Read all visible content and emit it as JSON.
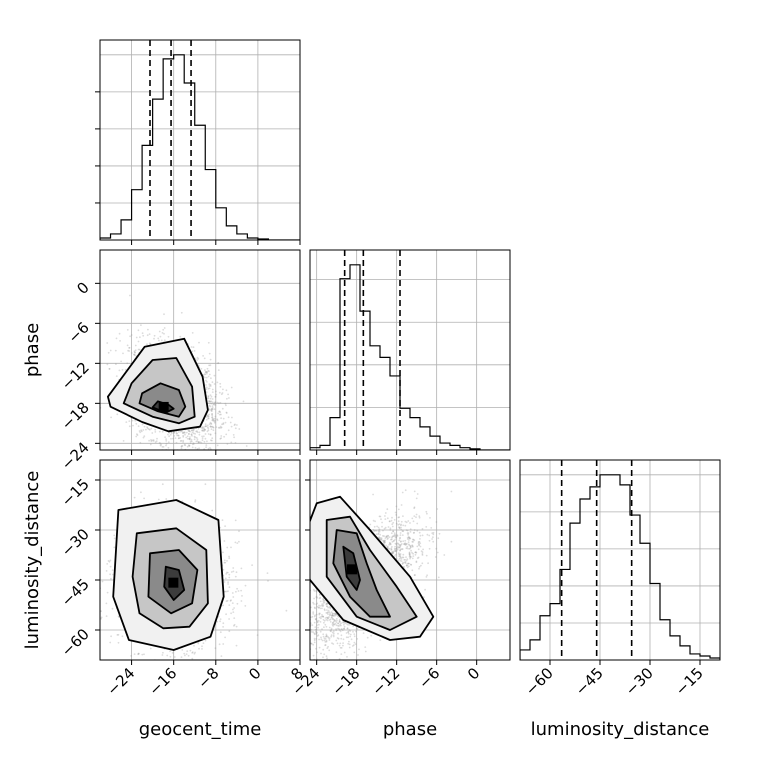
{
  "chart_data": {
    "type": "corner",
    "parameters": [
      "geocent_time",
      "phase",
      "luminosity_distance"
    ],
    "axis_labels": {
      "x": [
        "geocent_time",
        "phase",
        "luminosity_distance"
      ],
      "y": [
        "phase",
        "luminosity_distance"
      ]
    },
    "ranges": {
      "geocent_time": [
        -30,
        8
      ],
      "phase": [
        -25,
        5
      ],
      "luminosity_distance": [
        -69,
        -9
      ]
    },
    "ticks": {
      "geocent_time": {
        "values": [
          -24,
          -16,
          -8,
          0,
          8
        ],
        "labels": [
          "−24",
          "−16",
          "−8",
          "0",
          "8"
        ]
      },
      "phase": {
        "values": [
          -24,
          -18,
          -12,
          -6,
          0
        ],
        "labels": [
          "−24",
          "−18",
          "−12",
          "−6",
          "0"
        ]
      },
      "luminosity_distance": {
        "values": [
          -60,
          -45,
          -30,
          -15
        ],
        "labels": [
          "−60",
          "−45",
          "−30",
          "−15"
        ]
      }
    },
    "quantiles": {
      "geocent_time": [
        -20.5,
        -16.5,
        -12.7
      ],
      "phase": [
        -19.8,
        -17.0,
        -11.5
      ],
      "luminosity_distance": [
        -56.5,
        -46.0,
        -35.5
      ]
    },
    "histograms": {
      "geocent_time": {
        "bin_edges": [
          -30,
          -28,
          -26,
          -24,
          -22,
          -20,
          -18,
          -16,
          -14,
          -12,
          -10,
          -8,
          -6,
          -4,
          -2,
          0,
          2,
          4,
          6,
          8
        ],
        "counts": [
          1,
          3,
          10,
          25,
          47,
          70,
          90,
          92,
          78,
          57,
          35,
          16,
          7,
          3,
          1,
          0.5,
          0,
          0,
          0
        ]
      },
      "phase": {
        "bin_edges": [
          -25,
          -23.5,
          -22,
          -20.5,
          -19,
          -17.5,
          -16,
          -14.5,
          -13,
          -11.5,
          -10,
          -8.5,
          -7,
          -5.5,
          -4,
          -2.5,
          -1,
          0.5,
          2,
          3.5,
          5
        ],
        "counts": [
          1,
          2,
          14,
          74,
          80,
          60,
          45,
          40,
          32,
          18,
          14,
          10,
          6,
          3,
          2,
          1,
          0.5,
          0,
          0,
          0
        ]
      },
      "luminosity_distance": {
        "bin_edges": [
          -69,
          -66,
          -63,
          -60,
          -57,
          -54,
          -51,
          -48,
          -45,
          -42,
          -39,
          -36,
          -33,
          -30,
          -27,
          -24,
          -21,
          -18,
          -15,
          -12,
          -9
        ],
        "counts": [
          5,
          10,
          22,
          28,
          45,
          68,
          80,
          86,
          92,
          92,
          87,
          72,
          58,
          38,
          20,
          12,
          7,
          3,
          2,
          1
        ]
      }
    },
    "joint": [
      {
        "x": "geocent_time",
        "y": "phase",
        "mean": [
          -16.0,
          -17.0
        ],
        "sd": [
          4.2,
          3.8
        ],
        "rho": -0.3,
        "contours": [
          [
            [
              -19.0,
              -17.7
            ],
            [
              -17.0,
              -18.2
            ],
            [
              -16.0,
              -18.8
            ],
            [
              -17.5,
              -19.4
            ],
            [
              -20.0,
              -18.6
            ]
          ],
          [
            [
              -22.0,
              -16.5
            ],
            [
              -18.5,
              -15.0
            ],
            [
              -15.0,
              -16.0
            ],
            [
              -13.8,
              -18.5
            ],
            [
              -15.0,
              -20.0
            ],
            [
              -19.0,
              -19.2
            ],
            [
              -22.5,
              -18.0
            ]
          ],
          [
            [
              -24.0,
              -15.0
            ],
            [
              -20.0,
              -11.5
            ],
            [
              -15.5,
              -11.2
            ],
            [
              -12.5,
              -15.5
            ],
            [
              -12.0,
              -20.0
            ],
            [
              -15.0,
              -21.0
            ],
            [
              -20.0,
              -20.0
            ],
            [
              -25.5,
              -18.0
            ]
          ],
          [
            [
              -28.5,
              -17.0
            ],
            [
              -21.5,
              -9.5
            ],
            [
              -14.0,
              -8.3
            ],
            [
              -10.5,
              -14.0
            ],
            [
              -9.5,
              -19.0
            ],
            [
              -11.0,
              -21.5
            ],
            [
              -17.0,
              -22.2
            ],
            [
              -22.0,
              -20.8
            ],
            [
              -28.0,
              -18.5
            ]
          ]
        ]
      },
      {
        "x": "geocent_time",
        "y": "luminosity_distance",
        "mean": [
          -16.0,
          -46.0
        ],
        "sd": [
          5.0,
          9.0
        ],
        "rho": 0.0,
        "contours": [
          [
            [
              -17.5,
              -41.0
            ],
            [
              -15.0,
              -42.0
            ],
            [
              -14.0,
              -48.0
            ],
            [
              -16.0,
              -51.0
            ],
            [
              -17.8,
              -47.0
            ]
          ],
          [
            [
              -20.5,
              -37.0
            ],
            [
              -15.0,
              -36.0
            ],
            [
              -11.5,
              -42.0
            ],
            [
              -12.5,
              -52.0
            ],
            [
              -16.5,
              -55.0
            ],
            [
              -20.8,
              -50.0
            ]
          ],
          [
            [
              -23.0,
              -31.0
            ],
            [
              -15.5,
              -29.5
            ],
            [
              -9.8,
              -36.0
            ],
            [
              -9.5,
              -52.0
            ],
            [
              -13.0,
              -59.0
            ],
            [
              -18.0,
              -59.5
            ],
            [
              -22.5,
              -55.0
            ],
            [
              -23.8,
              -44.0
            ]
          ],
          [
            [
              -26.5,
              -24.0
            ],
            [
              -15.5,
              -21.0
            ],
            [
              -7.5,
              -27.0
            ],
            [
              -6.5,
              -50.0
            ],
            [
              -9.0,
              -62.0
            ],
            [
              -16.0,
              -66.0
            ],
            [
              -24.5,
              -63.0
            ],
            [
              -27.5,
              -50.0
            ]
          ]
        ]
      },
      {
        "x": "phase",
        "y": "luminosity_distance",
        "mean": [
          -17.0,
          -46.0
        ],
        "sd": [
          4.0,
          9.0
        ],
        "rho": 0.65,
        "contours": [
          [
            [
              -20.0,
              -35.0
            ],
            [
              -18.5,
              -37.0
            ],
            [
              -17.5,
              -45.0
            ],
            [
              -18.0,
              -48.0
            ],
            [
              -19.5,
              -44.0
            ]
          ],
          [
            [
              -21.0,
              -30.0
            ],
            [
              -18.0,
              -31.0
            ],
            [
              -16.5,
              -40.0
            ],
            [
              -15.0,
              -48.0
            ],
            [
              -13.0,
              -56.0
            ],
            [
              -16.0,
              -56.0
            ],
            [
              -19.0,
              -50.0
            ],
            [
              -21.5,
              -40.0
            ]
          ],
          [
            [
              -22.5,
              -27.0
            ],
            [
              -19.0,
              -26.0
            ],
            [
              -16.0,
              -36.0
            ],
            [
              -12.0,
              -47.0
            ],
            [
              -9.0,
              -56.0
            ],
            [
              -13.0,
              -60.0
            ],
            [
              -18.0,
              -56.0
            ],
            [
              -22.5,
              -44.0
            ]
          ],
          [
            [
              -24.0,
              -22.0
            ],
            [
              -20.5,
              -20.0
            ],
            [
              -16.0,
              -30.0
            ],
            [
              -10.0,
              -44.0
            ],
            [
              -6.5,
              -56.0
            ],
            [
              -8.5,
              -62.0
            ],
            [
              -13.0,
              -63.0
            ],
            [
              -20.0,
              -57.0
            ],
            [
              -25.0,
              -45.0
            ],
            [
              -26.5,
              -35.0
            ]
          ]
        ]
      }
    ]
  }
}
